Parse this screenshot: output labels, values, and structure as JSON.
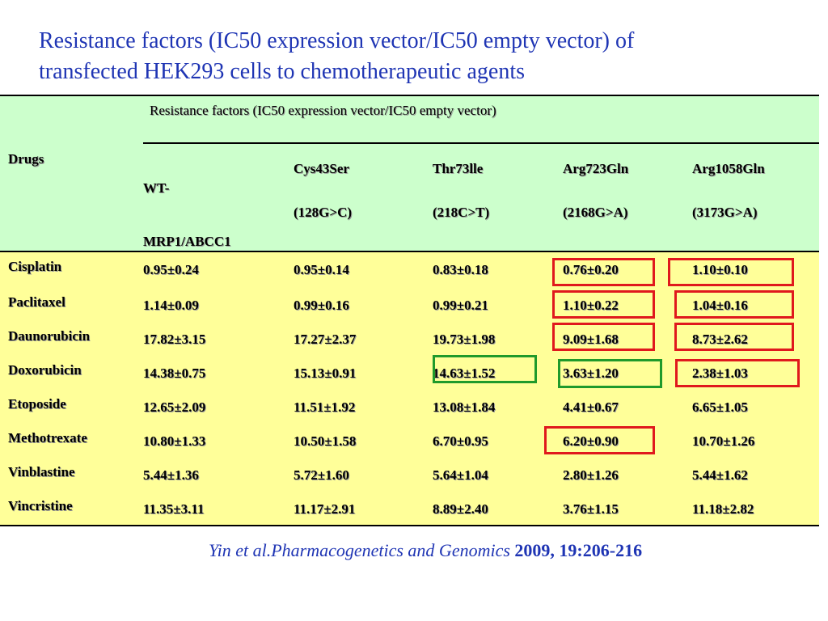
{
  "title": {
    "line1": "Resistance factors (IC50 expression vector/IC50 empty vector) of",
    "line2": "transfected HEK293 cells to chemotherapeutic agents"
  },
  "table": {
    "drugs_header": "Drugs",
    "group_header": "Resistance factors (IC50 expression vector/IC50 empty vector)",
    "variants": [
      {
        "line1": "WT-",
        "line2": "MRP1/ABCC1"
      },
      {
        "line1": "Cys43Ser",
        "line2": "(128G>C)"
      },
      {
        "line1": "Thr73lle",
        "line2": "(218C>T)"
      },
      {
        "line1": "Arg723Gln",
        "line2": "(2168G>A)"
      },
      {
        "line1": "Arg1058Gln",
        "line2": "(3173G>A)"
      }
    ],
    "rows": [
      {
        "drug": "Cisplatin",
        "values": [
          "0.95±0.24",
          "0.95±0.14",
          "0.83±0.18",
          "0.76±0.20",
          "1.10±0.10"
        ]
      },
      {
        "drug": "Paclitaxel",
        "values": [
          "1.14±0.09",
          "0.99±0.16",
          "0.99±0.21",
          "1.10±0.22",
          "1.04±0.16"
        ]
      },
      {
        "drug": "Daunorubicin",
        "values": [
          "17.82±3.15",
          "17.27±2.37",
          "19.73±1.98",
          "9.09±1.68",
          "8.73±2.62"
        ]
      },
      {
        "drug": "Doxorubicin",
        "values": [
          "14.38±0.75",
          "15.13±0.91",
          "14.63±1.52",
          "3.63±1.20",
          "2.38±1.03"
        ]
      },
      {
        "drug": "Etoposide",
        "values": [
          "12.65±2.09",
          "11.51±1.92",
          "13.08±1.84",
          "4.41±0.67",
          "6.65±1.05"
        ]
      },
      {
        "drug": "Methotrexate",
        "values": [
          "10.80±1.33",
          "10.50±1.58",
          "6.70±0.95",
          "6.20±0.90",
          "10.70±1.26"
        ]
      },
      {
        "drug": "Vinblastine",
        "values": [
          "5.44±1.36",
          "5.72±1.60",
          "5.64±1.04",
          "2.80±1.26",
          "5.44±1.62"
        ]
      },
      {
        "drug": "Vincristine",
        "values": [
          "11.35±3.11",
          "11.17±2.91",
          "8.89±2.40",
          "3.76±1.15",
          "11.18±2.82"
        ]
      }
    ]
  },
  "highlights": {
    "colors": {
      "red": "#e0191d",
      "green": "#1f9a2b"
    }
  },
  "citation": {
    "italic": "Yin et al.Pharmacogenetics and Genomics",
    "rest": "2009, 19:206-216"
  }
}
